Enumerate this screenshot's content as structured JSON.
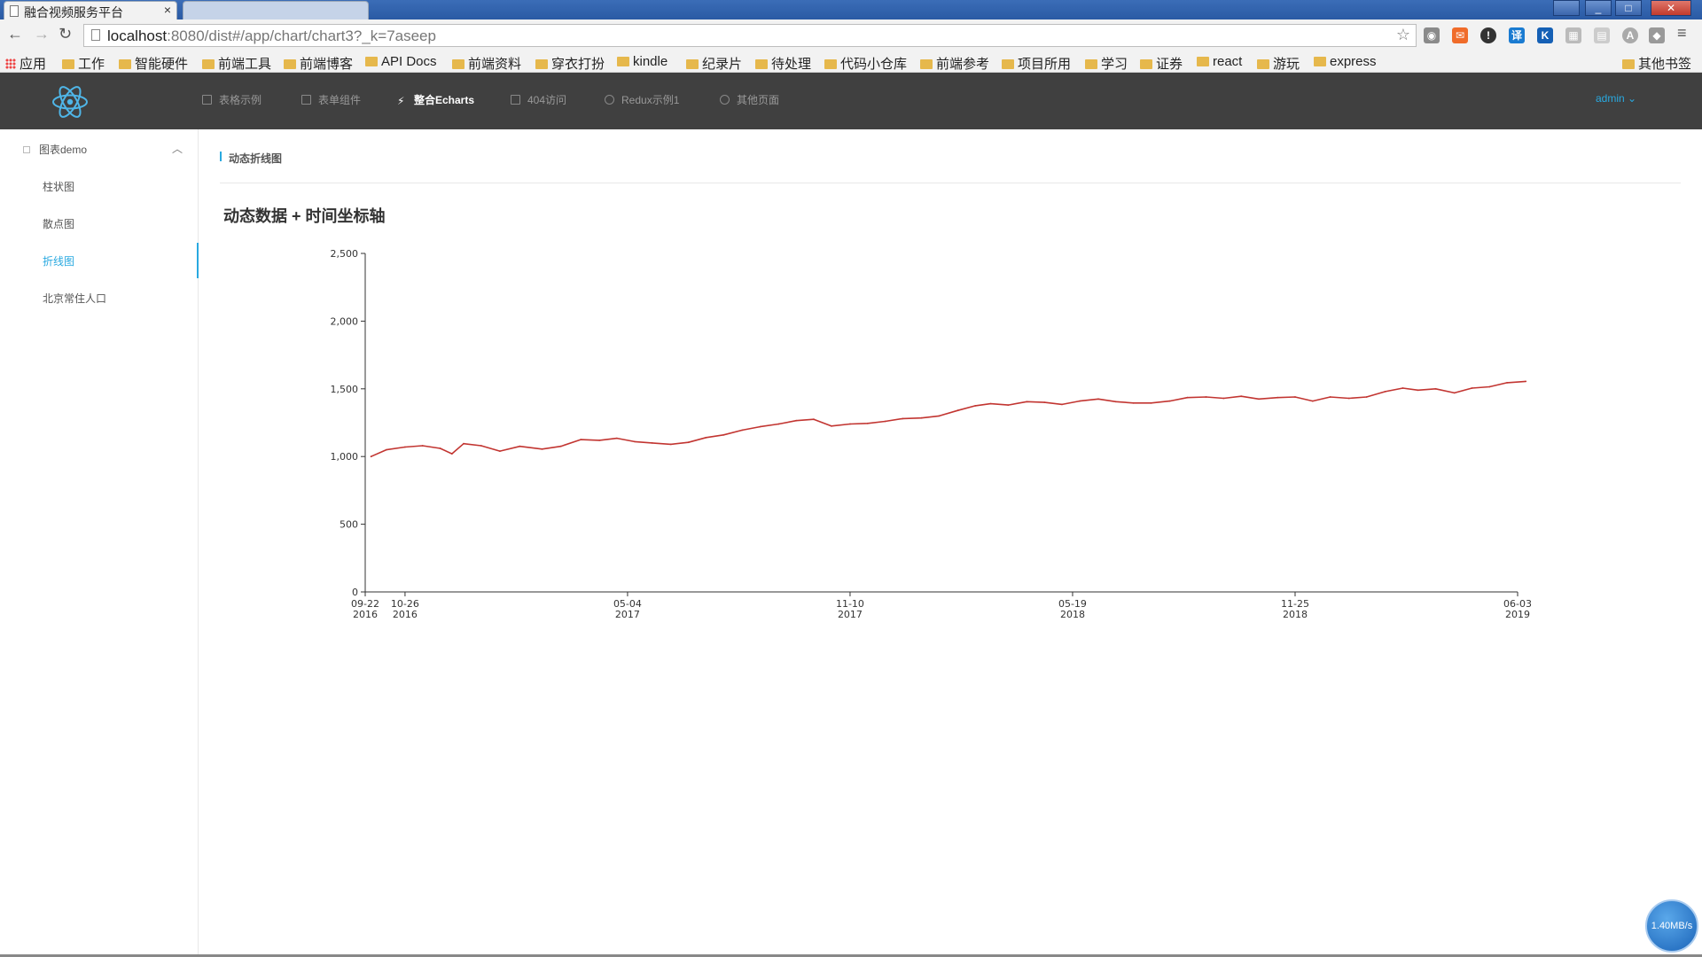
{
  "browser": {
    "tab_title": "融合视频服务平台",
    "tab_close": "×",
    "url_host": "localhost",
    "url_rest": ":8080/dist#/app/chart/chart3?_k=7aseep",
    "bookmarks": [
      "应用",
      "工作",
      "智能硬件",
      "前端工具",
      "前端博客",
      "API Docs",
      "前端资料",
      "穿衣打扮",
      "kindle",
      "纪录片",
      "待处理",
      "代码小仓库",
      "前端参考",
      "项目所用",
      "学习",
      "证券",
      "react",
      "游玩",
      "express"
    ],
    "other_bookmarks": "其他书签"
  },
  "header": {
    "nav": [
      {
        "label": "表格示例",
        "icon": "table-icon"
      },
      {
        "label": "表单组件",
        "icon": "form-icon"
      },
      {
        "label": "整合Echarts",
        "icon": "chart-icon",
        "active": true
      },
      {
        "label": "404访问",
        "icon": "page-icon"
      },
      {
        "label": "Redux示例1",
        "icon": "user-icon"
      },
      {
        "label": "其他页面",
        "icon": "settings-icon"
      }
    ],
    "user": "admin",
    "accent": "#29a9e0"
  },
  "sidebar": {
    "group": "图表demo",
    "items": [
      {
        "label": "柱状图"
      },
      {
        "label": "散点图"
      },
      {
        "label": "折线图",
        "active": true
      },
      {
        "label": "北京常住人口"
      }
    ]
  },
  "main": {
    "page_heading": "动态折线图",
    "chart_title": "动态数据 + 时间坐标轴"
  },
  "chart_data": {
    "type": "line",
    "title": "动态数据 + 时间坐标轴",
    "color": "#c23531",
    "x_axis": "time",
    "xlim": [
      "2016-09-22",
      "2019-06-03"
    ],
    "ylim": [
      0,
      2500
    ],
    "y_ticks": [
      "0",
      "500",
      "1,000",
      "1,500",
      "2,000",
      "2,500"
    ],
    "x_ticks": [
      {
        "date": "2016-09-22",
        "line1": "09-22",
        "line2": "2016"
      },
      {
        "date": "2016-10-26",
        "line1": "10-26",
        "line2": "2016"
      },
      {
        "date": "2017-05-04",
        "line1": "05-04",
        "line2": "2017"
      },
      {
        "date": "2017-11-10",
        "line1": "11-10",
        "line2": "2017"
      },
      {
        "date": "2018-05-19",
        "line1": "05-19",
        "line2": "2018"
      },
      {
        "date": "2018-11-25",
        "line1": "11-25",
        "line2": "2018"
      },
      {
        "date": "2019-06-03",
        "line1": "06-03",
        "line2": "2019"
      }
    ],
    "series": [
      {
        "points": [
          [
            "2016-09-27",
            1000
          ],
          [
            "2016-10-10",
            1050
          ],
          [
            "2016-10-26",
            1070
          ],
          [
            "2016-11-10",
            1080
          ],
          [
            "2016-11-25",
            1060
          ],
          [
            "2016-12-05",
            1020
          ],
          [
            "2016-12-15",
            1095
          ],
          [
            "2016-12-30",
            1080
          ],
          [
            "2017-01-15",
            1040
          ],
          [
            "2017-02-01",
            1075
          ],
          [
            "2017-02-20",
            1055
          ],
          [
            "2017-03-08",
            1075
          ],
          [
            "2017-03-25",
            1125
          ],
          [
            "2017-04-10",
            1120
          ],
          [
            "2017-04-25",
            1135
          ],
          [
            "2017-05-10",
            1110
          ],
          [
            "2017-05-25",
            1100
          ],
          [
            "2017-06-10",
            1090
          ],
          [
            "2017-06-25",
            1105
          ],
          [
            "2017-07-10",
            1140
          ],
          [
            "2017-07-25",
            1160
          ],
          [
            "2017-08-10",
            1195
          ],
          [
            "2017-08-25",
            1220
          ],
          [
            "2017-09-10",
            1240
          ],
          [
            "2017-09-25",
            1265
          ],
          [
            "2017-10-10",
            1275
          ],
          [
            "2017-10-25",
            1225
          ],
          [
            "2017-11-10",
            1240
          ],
          [
            "2017-11-25",
            1245
          ],
          [
            "2017-12-10",
            1260
          ],
          [
            "2017-12-25",
            1280
          ],
          [
            "2018-01-10",
            1285
          ],
          [
            "2018-01-25",
            1300
          ],
          [
            "2018-02-10",
            1340
          ],
          [
            "2018-02-25",
            1375
          ],
          [
            "2018-03-10",
            1390
          ],
          [
            "2018-03-25",
            1380
          ],
          [
            "2018-04-10",
            1405
          ],
          [
            "2018-04-25",
            1400
          ],
          [
            "2018-05-10",
            1385
          ],
          [
            "2018-05-25",
            1410
          ],
          [
            "2018-06-10",
            1425
          ],
          [
            "2018-06-25",
            1405
          ],
          [
            "2018-07-10",
            1395
          ],
          [
            "2018-07-25",
            1395
          ],
          [
            "2018-08-10",
            1410
          ],
          [
            "2018-08-25",
            1435
          ],
          [
            "2018-09-10",
            1440
          ],
          [
            "2018-09-25",
            1430
          ],
          [
            "2018-10-10",
            1445
          ],
          [
            "2018-10-25",
            1425
          ],
          [
            "2018-11-10",
            1435
          ],
          [
            "2018-11-25",
            1440
          ],
          [
            "2018-12-10",
            1410
          ],
          [
            "2018-12-25",
            1440
          ],
          [
            "2019-01-10",
            1430
          ],
          [
            "2019-01-25",
            1440
          ],
          [
            "2019-02-10",
            1480
          ],
          [
            "2019-02-25",
            1505
          ],
          [
            "2019-03-10",
            1490
          ],
          [
            "2019-03-25",
            1500
          ],
          [
            "2019-04-10",
            1470
          ],
          [
            "2019-04-25",
            1505
          ],
          [
            "2019-05-10",
            1515
          ],
          [
            "2019-05-25",
            1545
          ],
          [
            "2019-06-10",
            1555
          ]
        ]
      }
    ],
    "grid": false,
    "legend": "none"
  },
  "status": {
    "speed": "1.40MB/s"
  }
}
